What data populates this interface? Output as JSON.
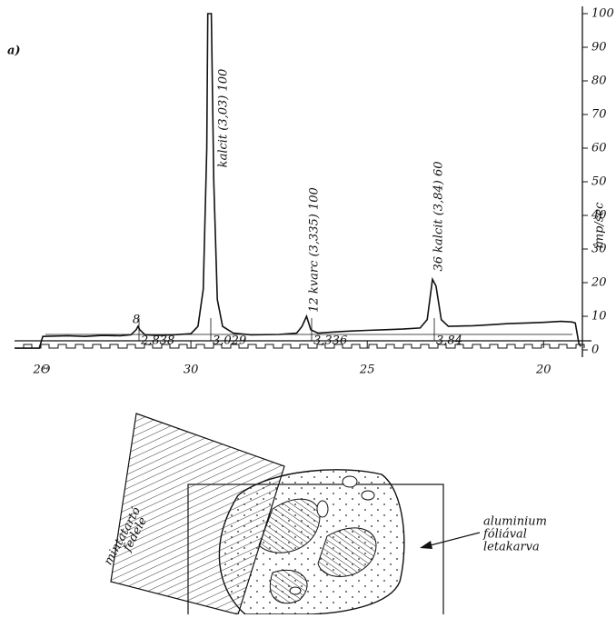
{
  "chart_data": {
    "type": "line",
    "panel_label": "a)",
    "x_label": "2Θ",
    "y_label": "imp/sec",
    "x": [
      35.0,
      34.3,
      34.2,
      33.5,
      33.0,
      32.5,
      32.0,
      31.7,
      31.55,
      31.5,
      31.45,
      31.3,
      31.0,
      30.5,
      30.0,
      29.8,
      29.65,
      29.55,
      29.52,
      29.42,
      29.35,
      29.25,
      29.1,
      28.8,
      28.3,
      27.5,
      27.0,
      26.85,
      26.72,
      26.6,
      26.4,
      26.0,
      25.5,
      25.0,
      24.5,
      24.0,
      23.5,
      23.3,
      23.15,
      23.05,
      22.9,
      22.7,
      22.0,
      21.5,
      21.0,
      20.5,
      20.0,
      19.5,
      19.2,
      19.1,
      19.0,
      18.95
    ],
    "series": [
      {
        "color": "#111111",
        "values": [
          0.5,
          0.5,
          4,
          4.2,
          4,
          4.3,
          4.2,
          4.5,
          6,
          7,
          6,
          4.5,
          4.3,
          4.5,
          4.8,
          7,
          18,
          60,
          100,
          100,
          50,
          15,
          7,
          5,
          4.5,
          4.6,
          5,
          7,
          10,
          6,
          5,
          5.3,
          5.6,
          5.8,
          6,
          6.2,
          6.5,
          9,
          21,
          19,
          9,
          7,
          7.2,
          7.5,
          7.8,
          8,
          8.2,
          8.5,
          8.3,
          8,
          2,
          1
        ]
      }
    ],
    "xlim": [
      35,
      18.9
    ],
    "xticks": [
      30,
      25,
      20
    ],
    "ylim": [
      0,
      100
    ],
    "yticks": [
      0,
      10,
      20,
      30,
      40,
      50,
      60,
      70,
      80,
      90,
      100
    ],
    "peak_labels": [
      "8",
      "kalcit (3,03) 100",
      "12 kvarc (3,335) 100",
      "36 kalcit (3,84) 60"
    ],
    "d_labels": [
      "2,838",
      "3,029",
      "3,336",
      "3,84"
    ]
  },
  "diagram": {
    "holder_label": [
      "mintatartó",
      "fedele"
    ],
    "foil_label": [
      "aluminium",
      "fóliával",
      "letakarva"
    ]
  }
}
